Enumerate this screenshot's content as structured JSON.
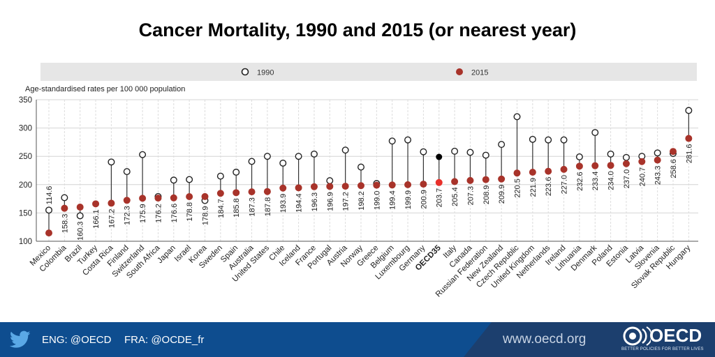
{
  "title": "Cancer Mortality, 1990 and 2015 (or nearest year)",
  "chart_data": {
    "type": "dot",
    "ylabel": "Age-standardised rates per 100 000 population",
    "ylim": [
      100,
      350
    ],
    "yticks": [
      100,
      150,
      200,
      250,
      300,
      350
    ],
    "grid": true,
    "legend_position": "top",
    "legend": [
      {
        "label": "1990",
        "marker": "hollow-circle"
      },
      {
        "label": "2015",
        "marker": "filled-circle"
      }
    ],
    "categories": [
      "Mexico",
      "Colombia",
      "Brazil",
      "Turkey",
      "Costa Rica",
      "Finland",
      "Switzerland",
      "South Africa",
      "Japan",
      "Israel",
      "Korea",
      "Sweden",
      "Spain",
      "Australia",
      "United States",
      "Chile",
      "Iceland",
      "France",
      "Portugal",
      "Austria",
      "Norway",
      "Greece",
      "Belgium",
      "Luxembourg",
      "Germany",
      "OECD35",
      "Italy",
      "Canada",
      "Russian Federation",
      "New Zealand",
      "Czech Republic",
      "United Kingdom",
      "Netherlands",
      "Ireland",
      "Lithuania",
      "Denmark",
      "Poland",
      "Estonia",
      "Latvia",
      "Slovenia",
      "Slovak Republic",
      "Hungary"
    ],
    "series": [
      {
        "name": "1990",
        "values": [
          155,
          177,
          145,
          null,
          240,
          223,
          253,
          179,
          208,
          209,
          172,
          215,
          222,
          241,
          250,
          238,
          250,
          254,
          207,
          261,
          231,
          202,
          277,
          279,
          258,
          249,
          259,
          257,
          252,
          271,
          320,
          280,
          279,
          279,
          249,
          292,
          254,
          248,
          250,
          256,
          255,
          331
        ]
      },
      {
        "name": "2015",
        "values": [
          114.6,
          158.3,
          160.3,
          166.1,
          167.2,
          172.3,
          175.9,
          176.2,
          176.6,
          178.8,
          178.9,
          184.7,
          185.8,
          187.3,
          187.8,
          193.9,
          194.4,
          196.3,
          196.9,
          197.2,
          198.2,
          199.0,
          199.4,
          199.9,
          200.9,
          203.7,
          205.4,
          207.3,
          208.9,
          209.9,
          220.5,
          221.9,
          223.6,
          227.0,
          232.6,
          233.4,
          234.0,
          237.0,
          240.7,
          243.3,
          258.6,
          281.6
        ]
      }
    ],
    "data_labels": [
      "114.6",
      "158.3",
      "160.3",
      "166.1",
      "167.2",
      "172.3",
      "175.9",
      "176.2",
      "176.6",
      "178.8",
      "178.9",
      "184.7",
      "185.8",
      "187.3",
      "187.8",
      "193.9",
      "194.4",
      "196.3",
      "196.9",
      "197.2",
      "198.2",
      "199.0",
      "199.4",
      "199.9",
      "200.9",
      "203.7",
      "205.4",
      "207.3",
      "208.9",
      "209.9",
      "220.5",
      "221.9",
      "223.6",
      "227.0",
      "232.6",
      "233.4",
      "234.0",
      "237.0",
      "240.7",
      "243.3",
      "258.6",
      "281.6"
    ],
    "highlight_category": "OECD35",
    "colors": {
      "series_2015": "#a8332a",
      "highlight_2015": "#e8302a",
      "highlight_1990": "#000000",
      "legend_band": "#e6e6e6"
    }
  },
  "footer": {
    "eng": "ENG: @OECD",
    "fra": "FRA: @OCDE_fr",
    "site": "www.oecd.org",
    "org": "OECD",
    "tagline": "BETTER POLICIES FOR BETTER LIVES",
    "twitter_icon": "twitter-bird-icon",
    "colors": {
      "bar": "#0e4d8f"
    }
  }
}
